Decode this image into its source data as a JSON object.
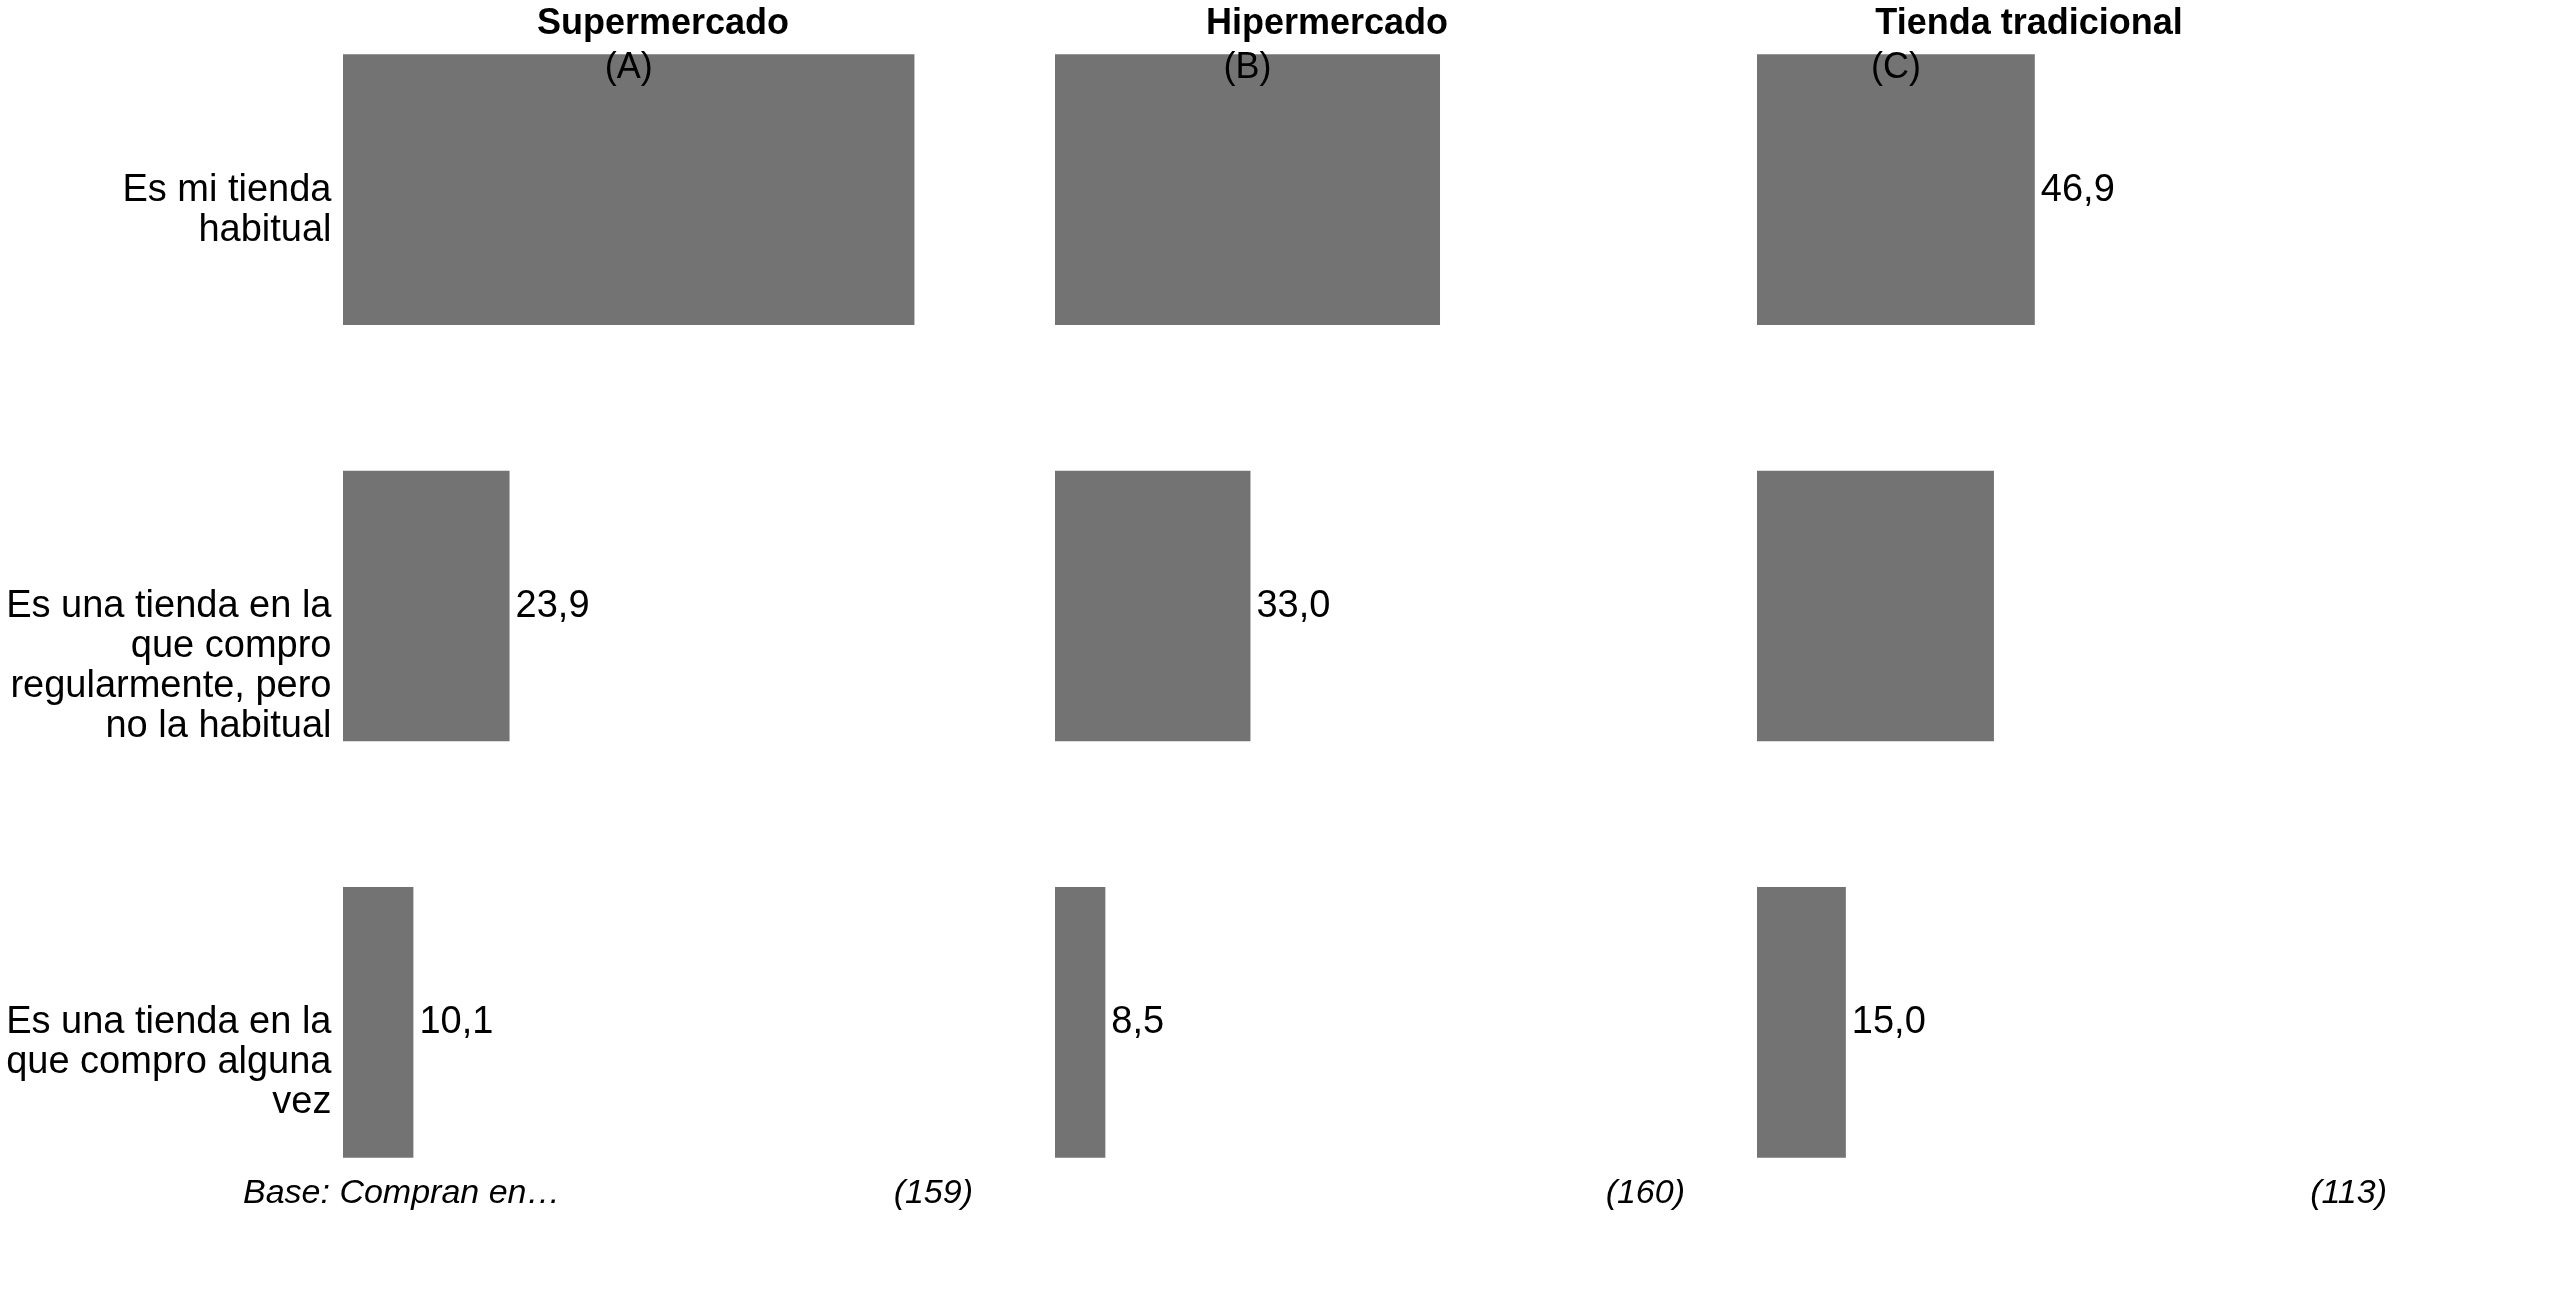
{
  "chart_data": [
    {
      "type": "bar",
      "orientation": "horizontal",
      "title": "Supermercado",
      "categories": [
        "Es mi tienda habitual",
        "Es una tienda en la que compro regularmente, pero no la habitual",
        "Es una tienda en la que compro alguna vez"
      ],
      "values": [
        82,
        23.9,
        10.1
      ],
      "value_labels": [
        null,
        "23,9",
        "10,1"
      ],
      "color": "#737373",
      "tick_labels": "y",
      "annotations": [
        "(A)",
        "Base: Compran en…",
        "(159)"
      ]
    },
    {
      "type": "bar",
      "orientation": "horizontal",
      "title": "Hipermercado",
      "categories": [
        null,
        null,
        null
      ],
      "values": [
        65,
        33.0,
        8.5
      ],
      "value_labels": [
        null,
        "33,0",
        "8,5"
      ],
      "color": "#737373",
      "annotations": [
        "(B)",
        "(160)"
      ]
    },
    {
      "type": "bar",
      "orientation": "horizontal",
      "title": "Tienda tradicional",
      "categories": [
        null,
        null,
        null
      ],
      "values": [
        46.9,
        40,
        15.0
      ],
      "value_labels": [
        "46,9",
        null,
        "15,0"
      ],
      "color": "#737373",
      "annotations": [
        "(C)",
        "(113)"
      ]
    }
  ]
}
